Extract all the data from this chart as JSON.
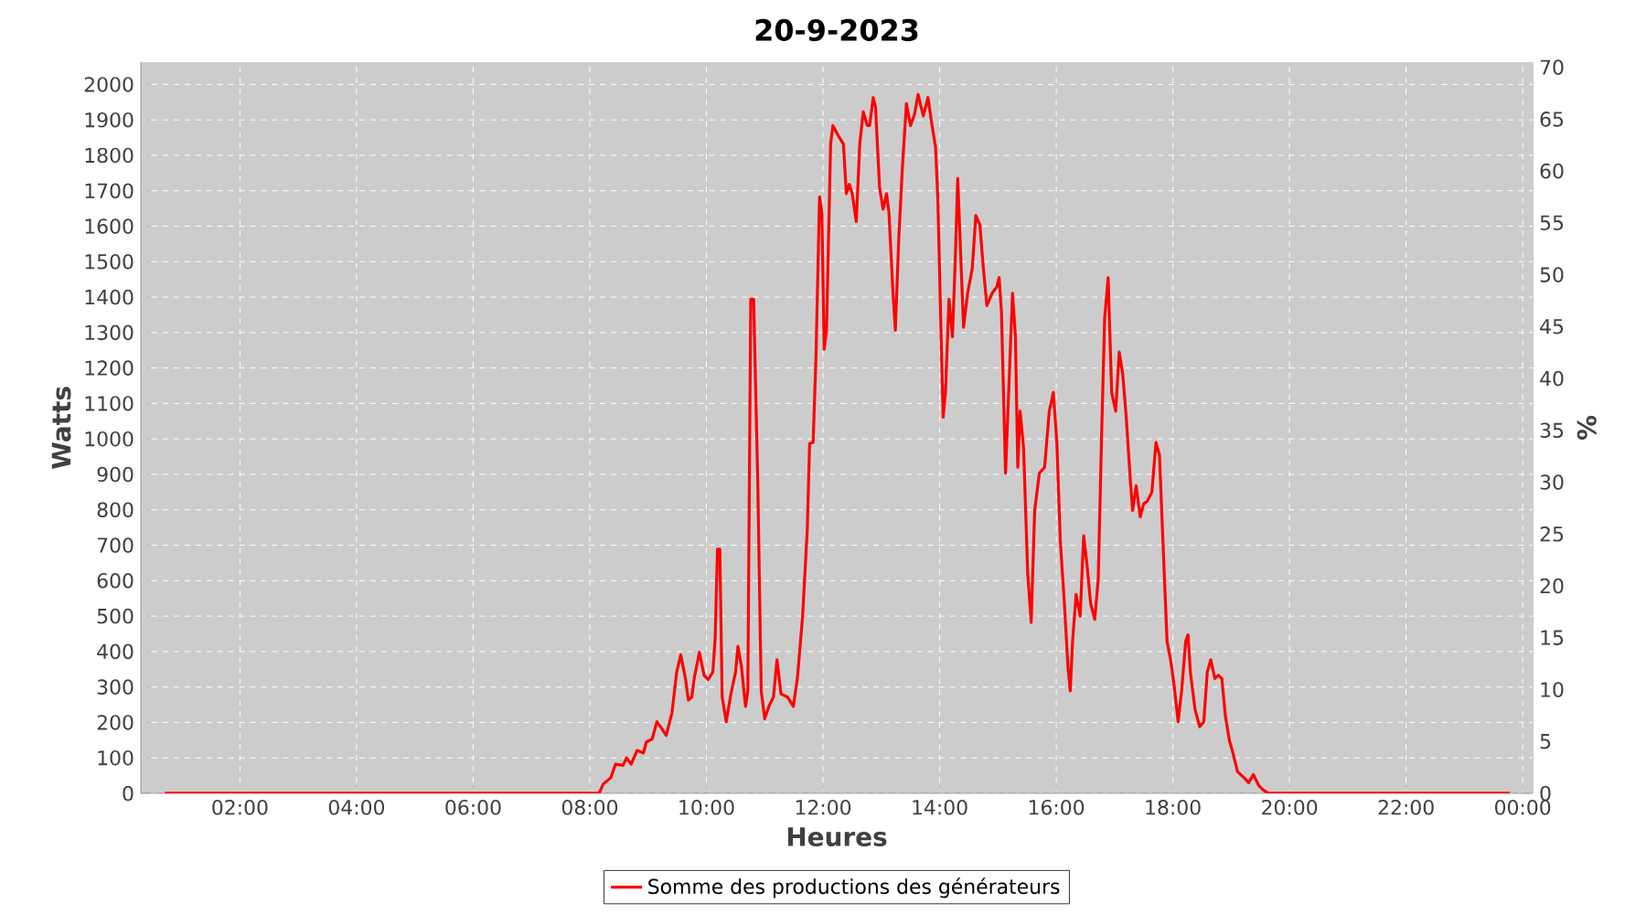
{
  "chart_data": {
    "type": "line",
    "title": "20-9-2023",
    "xlabel": "Heures",
    "ylabel": "Watts",
    "y2label": "%",
    "xlim": [
      0.3,
      24.17
    ],
    "ylim": [
      0,
      2063
    ],
    "y2lim": [
      0,
      70.5
    ],
    "xticks": [
      {
        "value": 2,
        "label": "02:00"
      },
      {
        "value": 4,
        "label": "04:00"
      },
      {
        "value": 6,
        "label": "06:00"
      },
      {
        "value": 8,
        "label": "08:00"
      },
      {
        "value": 10,
        "label": "10:00"
      },
      {
        "value": 12,
        "label": "12:00"
      },
      {
        "value": 14,
        "label": "14:00"
      },
      {
        "value": 16,
        "label": "16:00"
      },
      {
        "value": 18,
        "label": "18:00"
      },
      {
        "value": 20,
        "label": "20:00"
      },
      {
        "value": 22,
        "label": "22:00"
      },
      {
        "value": 24,
        "label": "00:00"
      }
    ],
    "yticks": [
      0,
      100,
      200,
      300,
      400,
      500,
      600,
      700,
      800,
      900,
      1000,
      1100,
      1200,
      1300,
      1400,
      1500,
      1600,
      1700,
      1800,
      1900,
      2000
    ],
    "y2ticks": [
      0,
      5,
      10,
      15,
      20,
      25,
      30,
      35,
      40,
      45,
      50,
      55,
      60,
      65,
      70
    ],
    "grid": true,
    "legend": "bottom",
    "line_style": "solid",
    "series": [
      {
        "name": "Somme des productions des  générateurs",
        "color": "#ff0000",
        "x": [
          0.71,
          4.0,
          8.16,
          8.23,
          8.36,
          8.44,
          8.57,
          8.63,
          8.71,
          8.81,
          8.92,
          8.97,
          9.07,
          9.15,
          9.23,
          9.31,
          9.41,
          9.49,
          9.56,
          9.64,
          9.69,
          9.75,
          9.79,
          9.88,
          9.96,
          10.03,
          10.11,
          10.15,
          10.19,
          10.23,
          10.27,
          10.34,
          10.42,
          10.5,
          10.54,
          10.6,
          10.67,
          10.71,
          10.76,
          10.81,
          10.88,
          10.94,
          11.0,
          11.07,
          11.15,
          11.21,
          11.28,
          11.39,
          11.49,
          11.56,
          11.65,
          11.73,
          11.77,
          11.83,
          11.88,
          11.94,
          11.98,
          12.02,
          12.06,
          12.13,
          12.17,
          12.27,
          12.35,
          12.4,
          12.45,
          12.5,
          12.57,
          12.63,
          12.69,
          12.76,
          12.8,
          12.86,
          12.9,
          12.97,
          13.03,
          13.09,
          13.13,
          13.2,
          13.24,
          13.3,
          13.36,
          13.43,
          13.5,
          13.57,
          13.63,
          13.72,
          13.8,
          13.87,
          13.93,
          13.97,
          14.02,
          14.06,
          14.1,
          14.16,
          14.22,
          14.27,
          14.31,
          14.37,
          14.41,
          14.48,
          14.56,
          14.62,
          14.69,
          14.75,
          14.81,
          14.9,
          14.98,
          15.02,
          15.06,
          15.13,
          15.19,
          15.25,
          15.3,
          15.34,
          15.38,
          15.44,
          15.51,
          15.57,
          15.63,
          15.71,
          15.8,
          15.88,
          15.95,
          16.01,
          16.07,
          16.14,
          16.2,
          16.24,
          16.28,
          16.34,
          16.41,
          16.47,
          16.53,
          16.59,
          16.66,
          16.72,
          16.78,
          16.83,
          16.89,
          16.95,
          17.02,
          17.08,
          17.14,
          17.2,
          17.27,
          17.31,
          17.37,
          17.44,
          17.5,
          17.56,
          17.64,
          17.71,
          17.77,
          17.83,
          17.9,
          17.96,
          18.02,
          18.09,
          18.15,
          18.22,
          18.26,
          18.3,
          18.38,
          18.46,
          18.53,
          18.59,
          18.65,
          18.72,
          18.78,
          18.84,
          18.9,
          18.97,
          19.03,
          19.11,
          19.22,
          19.3,
          19.38,
          19.47,
          19.55,
          19.64,
          22.0,
          23.78
        ],
        "values": [
          0,
          0,
          0,
          26,
          44,
          82,
          79,
          100,
          82,
          121,
          114,
          145,
          153,
          202,
          184,
          163,
          228,
          342,
          391,
          324,
          263,
          272,
          324,
          398,
          333,
          321,
          342,
          438,
          689,
          689,
          272,
          202,
          280,
          342,
          415,
          359,
          245,
          289,
          1394,
          1394,
          885,
          289,
          210,
          245,
          272,
          377,
          280,
          272,
          245,
          324,
          500,
          745,
          987,
          990,
          1236,
          1683,
          1639,
          1253,
          1306,
          1832,
          1884,
          1853,
          1832,
          1692,
          1718,
          1692,
          1613,
          1832,
          1923,
          1884,
          1884,
          1963,
          1937,
          1709,
          1648,
          1692,
          1639,
          1411,
          1306,
          1569,
          1762,
          1946,
          1884,
          1916,
          1972,
          1911,
          1963,
          1884,
          1823,
          1674,
          1324,
          1061,
          1131,
          1394,
          1288,
          1516,
          1735,
          1481,
          1315,
          1411,
          1481,
          1630,
          1604,
          1481,
          1376,
          1411,
          1429,
          1455,
          1359,
          903,
          1157,
          1411,
          1288,
          920,
          1078,
          973,
          622,
          482,
          798,
          903,
          920,
          1078,
          1131,
          990,
          710,
          535,
          359,
          289,
          429,
          561,
          500,
          727,
          640,
          535,
          491,
          605,
          1025,
          1341,
          1455,
          1131,
          1078,
          1245,
          1183,
          1061,
          885,
          798,
          868,
          780,
          817,
          824,
          850,
          990,
          955,
          710,
          429,
          377,
          307,
          202,
          289,
          429,
          447,
          342,
          237,
          188,
          202,
          342,
          377,
          324,
          333,
          324,
          219,
          149,
          114,
          61,
          44,
          30,
          53,
          23,
          9,
          0,
          0,
          0
        ]
      }
    ]
  }
}
